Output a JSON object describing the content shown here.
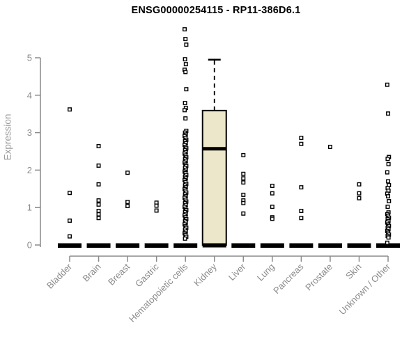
{
  "title": "ENSG00000254115 - RP11-386D6.1",
  "colors": {
    "box_fill": "#ece7cb",
    "data_ink": "#000000",
    "axis": "#8a8a8a",
    "axis_label": "#9a9a9a",
    "background": "#ffffff"
  },
  "chart_data": {
    "type": "boxplot",
    "title": "ENSG00000254115 - RP11-386D6.1",
    "xlabel": "",
    "ylabel": "Expression",
    "ylim": [
      0,
      5.8
    ],
    "yticks": [
      0,
      1,
      2,
      3,
      4,
      5
    ],
    "x_tick_rotation": 45,
    "grid": false,
    "legend": false,
    "categories": [
      "Bladder",
      "Brain",
      "Breast",
      "Gastric",
      "Hematopoietic cells",
      "Kidney",
      "Liver",
      "Lung",
      "Pancreas",
      "Prostate",
      "Skin",
      "Unknown / Other"
    ],
    "series": [
      {
        "category": "Bladder",
        "box": {
          "whisker_low": 0,
          "q1": 0,
          "median": 0,
          "q3": 0,
          "whisker_high": 0,
          "collapsed": true
        },
        "outliers": [
          3.62,
          1.39,
          0.65,
          0.23
        ]
      },
      {
        "category": "Brain",
        "box": {
          "whisker_low": 0,
          "q1": 0,
          "median": 0,
          "q3": 0,
          "whisker_high": 0,
          "collapsed": true
        },
        "outliers": [
          2.64,
          2.12,
          1.62,
          1.19,
          1.08,
          0.91,
          0.82,
          0.72
        ]
      },
      {
        "category": "Breast",
        "box": {
          "whisker_low": 0,
          "q1": 0,
          "median": 0,
          "q3": 0,
          "whisker_high": 0,
          "collapsed": true
        },
        "outliers": [
          1.93,
          1.15,
          1.04
        ]
      },
      {
        "category": "Gastric",
        "box": {
          "whisker_low": 0,
          "q1": 0,
          "median": 0,
          "q3": 0,
          "whisker_high": 0,
          "collapsed": true
        },
        "outliers": [
          1.13,
          1.05,
          0.92
        ]
      },
      {
        "category": "Hematopoietic cells",
        "box": {
          "whisker_low": 0,
          "q1": 0,
          "median": 0,
          "q3": 0,
          "whisker_high": 0,
          "collapsed": true
        },
        "outliers": [
          5.76,
          5.5,
          5.35,
          4.96,
          4.83,
          4.68,
          4.62,
          4.16,
          3.79,
          3.66,
          3.6,
          3.38,
          3.05,
          3.0,
          2.95,
          2.91,
          2.86,
          2.81,
          2.77,
          2.72,
          2.67,
          2.62,
          2.58,
          2.53,
          2.48,
          2.44,
          2.39,
          2.34,
          2.29,
          2.25,
          2.2,
          2.15,
          2.11,
          2.06,
          2.01,
          1.96,
          1.92,
          1.87,
          1.82,
          1.78,
          1.73,
          1.68,
          1.63,
          1.59,
          1.54,
          1.49,
          1.45,
          1.4,
          1.35,
          1.3,
          1.26,
          1.21,
          1.16,
          1.12,
          1.07,
          1.02,
          0.97,
          0.93,
          0.88,
          0.83,
          0.79,
          0.74,
          0.69,
          0.64,
          0.6,
          0.55,
          0.5,
          0.46,
          0.41,
          0.36,
          0.31,
          0.27,
          0.22,
          0.17
        ]
      },
      {
        "category": "Kidney",
        "box": {
          "whisker_low": 0,
          "q1": 0,
          "median": 2.57,
          "q3": 3.59,
          "whisker_high": 4.95,
          "collapsed": false
        },
        "outliers": []
      },
      {
        "category": "Liver",
        "box": {
          "whisker_low": 0,
          "q1": 0,
          "median": 0,
          "q3": 0,
          "whisker_high": 0,
          "collapsed": true
        },
        "outliers": [
          2.4,
          1.9,
          1.78,
          1.67,
          1.34,
          1.19,
          1.12,
          0.84
        ]
      },
      {
        "category": "Lung",
        "box": {
          "whisker_low": 0,
          "q1": 0,
          "median": 0,
          "q3": 0,
          "whisker_high": 0,
          "collapsed": true
        },
        "outliers": [
          1.58,
          1.38,
          1.02,
          0.74,
          0.7
        ]
      },
      {
        "category": "Pancreas",
        "box": {
          "whisker_low": 0,
          "q1": 0,
          "median": 0,
          "q3": 0,
          "whisker_high": 0,
          "collapsed": true
        },
        "outliers": [
          2.86,
          2.7,
          1.54,
          0.91,
          0.72
        ]
      },
      {
        "category": "Prostate",
        "box": {
          "whisker_low": 0,
          "q1": 0,
          "median": 0,
          "q3": 0,
          "whisker_high": 0,
          "collapsed": true
        },
        "outliers": [
          2.62
        ]
      },
      {
        "category": "Skin",
        "box": {
          "whisker_low": 0,
          "q1": 0,
          "median": 0,
          "q3": 0,
          "whisker_high": 0,
          "collapsed": true
        },
        "outliers": [
          1.62,
          1.38,
          1.25
        ]
      },
      {
        "category": "Unknown / Other",
        "box": {
          "whisker_low": 0,
          "q1": 0,
          "median": 0,
          "q3": 0,
          "whisker_high": 0,
          "collapsed": true
        },
        "outliers": [
          4.28,
          3.51,
          2.35,
          2.3,
          2.16,
          1.94,
          1.7,
          1.6,
          1.52,
          1.45,
          1.37,
          1.3,
          1.17,
          1.02,
          0.87,
          0.82,
          0.78,
          0.73,
          0.69,
          0.64,
          0.6,
          0.55,
          0.51,
          0.46,
          0.42,
          0.37,
          0.33,
          0.28,
          0.24,
          0.2,
          0.06
        ]
      }
    ]
  }
}
